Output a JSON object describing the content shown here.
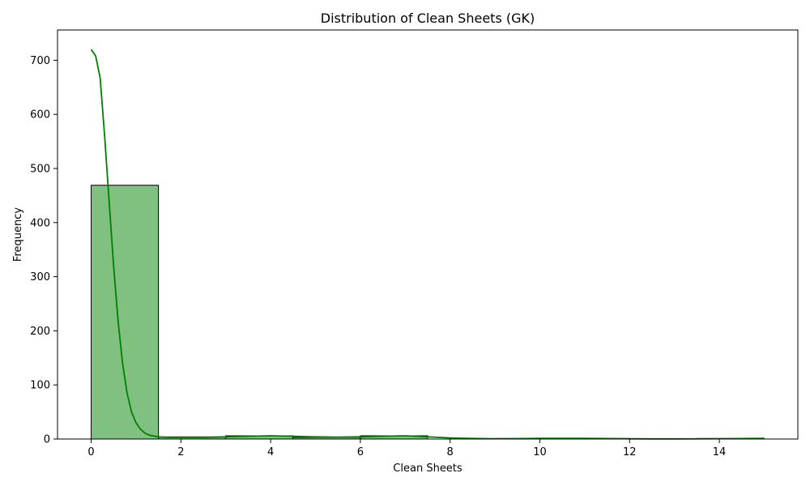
{
  "chart_data": {
    "type": "bar",
    "title": "Distribution of Clean Sheets (GK)",
    "xlabel": "Clean Sheets",
    "ylabel": "Frequency",
    "xlim": [
      -0.75,
      15.75
    ],
    "ylim": [
      0,
      756
    ],
    "x_ticks": [
      0,
      2,
      4,
      6,
      8,
      10,
      12,
      14
    ],
    "y_ticks": [
      0,
      100,
      200,
      300,
      400,
      500,
      600,
      700
    ],
    "bin_width": 1.5,
    "bins": [
      {
        "start": 0.0,
        "end": 1.5,
        "count": 469
      },
      {
        "start": 1.5,
        "end": 3.0,
        "count": 4
      },
      {
        "start": 3.0,
        "end": 4.5,
        "count": 6
      },
      {
        "start": 4.5,
        "end": 6.0,
        "count": 3
      },
      {
        "start": 6.0,
        "end": 7.5,
        "count": 6
      },
      {
        "start": 7.5,
        "end": 9.0,
        "count": 0
      },
      {
        "start": 9.0,
        "end": 10.5,
        "count": 1
      },
      {
        "start": 10.5,
        "end": 12.0,
        "count": 1
      },
      {
        "start": 12.0,
        "end": 13.5,
        "count": 0
      },
      {
        "start": 13.5,
        "end": 15.0,
        "count": 1
      }
    ],
    "kde": {
      "x": [
        0,
        0.1,
        0.2,
        0.3,
        0.4,
        0.5,
        0.6,
        0.7,
        0.8,
        0.9,
        1.0,
        1.1,
        1.2,
        1.3,
        1.5,
        1.7,
        2.0,
        2.5,
        3.0,
        3.5,
        4.0,
        4.5,
        5.0,
        5.5,
        6.0,
        6.5,
        7.0,
        7.5,
        8.0,
        8.5,
        9.0,
        9.5,
        10.0,
        10.5,
        11.0,
        11.5,
        12.0,
        12.5,
        13.0,
        13.5,
        14.0,
        14.5,
        15.0
      ],
      "y": [
        720,
        708,
        668,
        560,
        440,
        320,
        218,
        140,
        85,
        50,
        30,
        18,
        11,
        7,
        4,
        3,
        3,
        3,
        4,
        5,
        6,
        5,
        4,
        3.5,
        4,
        5,
        6,
        4,
        2,
        1,
        0.6,
        0.8,
        1.2,
        1.3,
        1.2,
        0.9,
        0.5,
        0.3,
        0.3,
        0.4,
        0.6,
        0.9,
        1.2
      ]
    },
    "colors": {
      "bar_fill": "#80c080",
      "bar_edge": "#000000",
      "kde_line": "#008000"
    },
    "grid": false,
    "legend": "none"
  }
}
